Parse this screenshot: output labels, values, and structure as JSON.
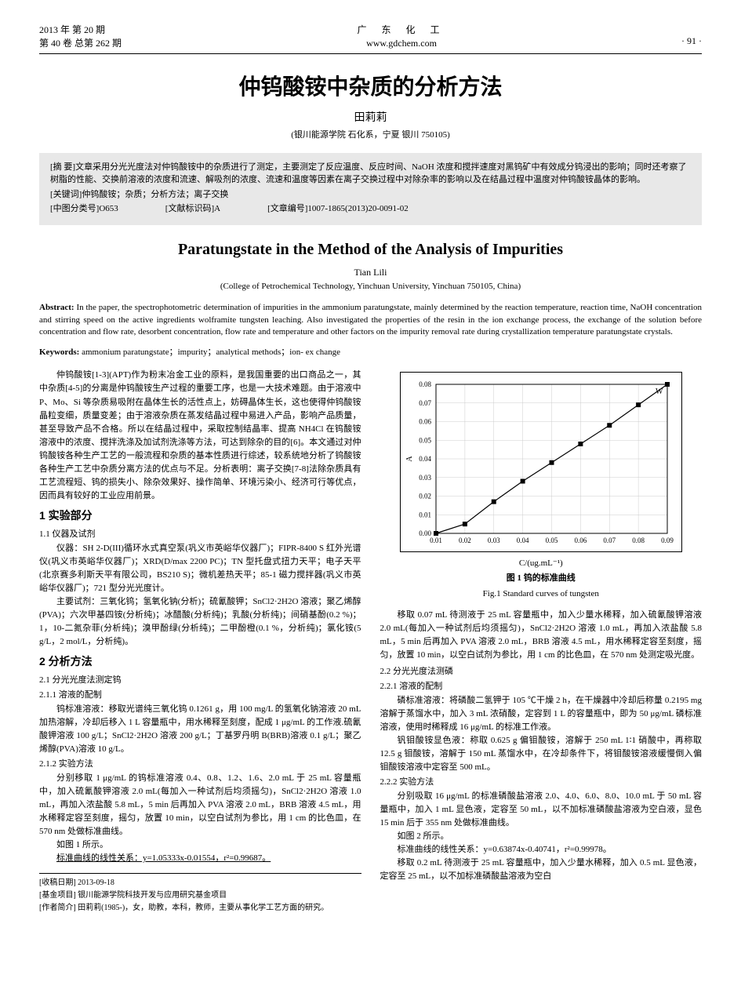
{
  "header": {
    "issue_line1": "2013 年 第 20 期",
    "issue_line2": "第 40 卷 总第 262 期",
    "journal_cn": "广 东 化 工",
    "site": "www.gdchem.com",
    "page_no": "· 91 ·"
  },
  "title_cn": "仲钨酸铵中杂质的分析方法",
  "author_cn": "田莉莉",
  "affil_cn": "(银川能源学院 石化系，宁夏 银川 750105)",
  "abstract_cn": {
    "prefix": "[摘 要]",
    "text": "文章采用分光光度法对仲钨酸铵中的杂质进行了测定，主要测定了反应温度、反应时间、NaOH 浓度和搅拌速度对黑钨矿中有效成分钨浸出的影响；同时还考察了树脂的性能、交换前溶液的浓度和流速、解吸剂的浓度、流速和温度等因素在离子交换过程中对除杂率的影响以及在结晶过程中温度对仲钨酸铵晶体的影响。",
    "keywords_prefix": "[关键词]",
    "keywords": "仲钨酸铵；杂质；分析方法；离子交换",
    "class_prefix": "[中图分类号]",
    "class": "O653",
    "doccode_prefix": "[文献标识码]",
    "doccode": "A",
    "artid_prefix": "[文章编号]",
    "artid": "1007-1865(2013)20-0091-02"
  },
  "title_en": "Paratungstate in the Method of the Analysis of Impurities",
  "author_en": "Tian Lili",
  "affil_en": "(College of Petrochemical Technology, Yinchuan University, Yinchuan 750105, China)",
  "abstract_en_prefix": "Abstract:",
  "abstract_en": " In the paper, the spectrophotometric determination of impurities in the ammonium paratungstate, mainly determined by the reaction temperature, reaction time, NaOH concentration and stirring speed on the active ingredients wolframite tungsten leaching. Also investigated the properties of the resin in the ion exchange process, the exchange of the solution before concentration and flow rate, desorbent concentration, flow rate and temperature and other factors on the impurity removal rate during crystallization temperature paratungstate crystals.",
  "keywords_en_prefix": "Keywords:",
  "keywords_en": " ammonium paratungstate；impurity；analytical methods；ion- ex change",
  "left": {
    "intro": "仲钨酸铵[1-3](APT)作为粉末冶金工业的原料，是我国重要的出口商品之一，其中杂质[4-5]的分离是仲钨酸铵生产过程的重要工序，也是一大技术难题。由于溶液中 P、Mo、Si 等杂质易吸附在晶体生长的活性点上，妨碍晶体生长，这也使得仲钨酸铵晶粒变细，质量变差；由于溶液杂质在蒸发结晶过程中易进入产品，影响产品质量，甚至导致产品不合格。所以在结晶过程中，采取控制结晶率、提高 NH4Cl 在钨酸铵溶液中的浓度、搅拌洗涤及加试剂洗涤等方法，可达到除杂的目的[6]。本文通过对仲钨酸铵各种生产工艺的一般流程和杂质的基本性质进行综述，较系统地分析了钨酸铵各种生产工艺中杂质分离方法的优点与不足。分析表明：离子交换[7-8]法除杂质具有工艺流程短、钨的损失小、除杂效果好、操作简单、环境污染小、经济可行等优点，因而具有较好的工业应用前景。",
    "s1": "1 实验部分",
    "s1_1": "1.1 仪器及试剂",
    "s1_1_a": "仪器：SH 2-D(III)循环水式真空泵(巩义市英峪华仪器厂)；FIPR-8400 S 红外光谱仪(巩义市英峪华仪器厂)；XRD(D/max 2200 PC)；TN 型托盘式扭力天平；电子天平(北京赛多利斯天平有限公司，BS210 S)；微机差热天平；85-1 磁力搅拌器(巩义市英峪华仪器厂)；721 型分光光度计。",
    "s1_1_b": "主要试剂：三氧化钨；氢氧化钠(分析)；硫氰酸钾；SnCl2·2H2O 溶液；聚乙烯醇(PVA)；六次甲基四铵(分析纯)；冰醋酸(分析纯)；乳酸(分析纯)；间硝基酚(0.2 %)；1，10-二氮杂菲(分析纯)；溴甲酚绿(分析纯)；二甲酚橙(0.1 %，分析纯)；氯化铵(5 g/L，2 mol/L，分析纯)。",
    "s2": "2 分析方法",
    "s2_1": "2.1 分光光度法测定钨",
    "s2_1_1": "2.1.1 溶液的配制",
    "s2_1_1_t": "钨标准溶液：移取光谱纯三氧化钨 0.1261 g，用 100 mg/L 的氢氧化钠溶液 20 mL 加热溶解，冷却后移入 1 L 容量瓶中，用水稀释至刻度，配成 1 μg/mL 的工作液.硫氰酸钾溶液 100 g/L；SnCl2·2H2O 溶液 200 g/L；丁基罗丹明 B(BRB)溶液 0.1 g/L；聚乙烯醇(PVA)溶液 10 g/L。",
    "s2_1_2": "2.1.2 实验方法",
    "s2_1_2_t": "分别移取 1 μg/mL 的钨标准溶液 0.4、0.8、1.2、1.6、2.0 mL 于 25 mL 容量瓶中，加入硫氰酸钾溶液 2.0 mL(每加入一种试剂后均须摇匀)，SnCl2·2H2O 溶液 1.0 mL，再加入浓盐酸 5.8 mL，5 min 后再加入 PVA 溶液 2.0 mL，BRB 溶液 4.5 mL，用水稀释定容至刻度，摇匀，放置 10 min，以空白试剂为参比，用 1 cm 的比色皿，在 570 nm 处做标准曲线。",
    "fig1_ref": "如图 1 所示。",
    "eq1": "标准曲线的线性关系：y=1.05333x-0.01554，r²=0.99687。"
  },
  "right": {
    "fig1_caption_cn": "图 1  钨的标准曲线",
    "fig1_caption_en": "Fig.1  Standard curves of tungsten",
    "p1": "移取 0.07 mL 待测液于 25 mL 容量瓶中，加入少量水稀释，加入硫氰酸钾溶液 2.0 mL(每加入一种试剂后均须摇匀)，SnCl2·2H2O 溶液 1.0 mL，再加入浓盐酸 5.8 mL，5 min 后再加入 PVA 溶液 2.0 mL，BRB 溶液 4.5 mL，用水稀释定容至刻度，摇匀，放置 10 min，以空白试剂为参比，用 1 cm 的比色皿，在 570 nm 处测定吸光度。",
    "s2_2": "2.2 分光光度法测磷",
    "s2_2_1": "2.2.1 溶液的配制",
    "p2": "磷标准溶液：将磷酸二氢钾于 105 ℃干燥 2 h，在干燥器中冷却后称量 0.2195 mg 溶解于蒸馏水中，加入 3 mL 浓硝酸，定容到 1 L 的容量瓶中，即为 50 μg/mL 磷标准溶液，使用时稀释成 16 μg/mL 的标准工作液。",
    "p3": "钒钼酸铵显色液：称取 0.625 g 偏钼酸铵，溶解于 250 mL 1∶1 硝酸中，再称取 12.5 g 钼酸铵，溶解于 150 mL 蒸馏水中，在冷却条件下，将钼酸铵溶液缓慢倒入偏钼酸铵溶液中定容至 500 mL。",
    "s2_2_2": "2.2.2 实验方法",
    "p4": "分别吸取 16 μg/mL 的标准磷酸盐溶液 2.0、4.0、6.0、8.0、10.0 mL 于 50 mL 容量瓶中，加入 1 mL 显色液，定容至 50 mL，以不加标准磷酸盐溶液为空白液，显色 15 min 后于 355 nm 处做标准曲线。",
    "fig2_ref": "如图 2 所示。",
    "eq2": "标准曲线的线性关系：y=0.63874x-0.40741，r²=0.99978。",
    "p5": "移取 0.2 mL 待测液于 25 mL 容量瓶中，加入少量水稀释，加入 0.5 mL 显色液，定容至 25 mL，以不加标准磷酸盐溶液为空白"
  },
  "footer": {
    "recv_prefix": "[收稿日期]",
    "recv": "  2013-09-18",
    "fund_prefix": "[基金项目]",
    "fund": "  银川能源学院科技开发与应用研究基金项目",
    "bio_prefix": "[作者简介]",
    "bio": "  田莉莉(1985-)，女，助教，本科，教师，主要从事化学工艺方面的研究。"
  },
  "chart": {
    "type": "line-scatter",
    "x": [
      0.01,
      0.02,
      0.03,
      0.04,
      0.05,
      0.06,
      0.07,
      0.08,
      0.09
    ],
    "y": [
      0.0,
      0.005,
      0.017,
      0.028,
      0.038,
      0.048,
      0.058,
      0.069,
      0.08
    ],
    "marker": "square",
    "line_color": "#000000",
    "marker_fill": "#000000",
    "xlim": [
      0.01,
      0.09
    ],
    "ylim": [
      0.0,
      0.08
    ],
    "x_ticks": [
      0.01,
      0.02,
      0.03,
      0.04,
      0.05,
      0.06,
      0.07,
      0.08,
      0.09
    ],
    "y_ticks": [
      0.0,
      0.01,
      0.02,
      0.03,
      0.04,
      0.05,
      0.06,
      0.07,
      0.08
    ],
    "x_label": "C/(ug.mL⁻�ors)",
    "x_label_actual": "C/(ug.mL⁻¹)",
    "y_label": "A",
    "series_label": "W",
    "grid_color": "#cccccc",
    "background": "#ffffff"
  }
}
